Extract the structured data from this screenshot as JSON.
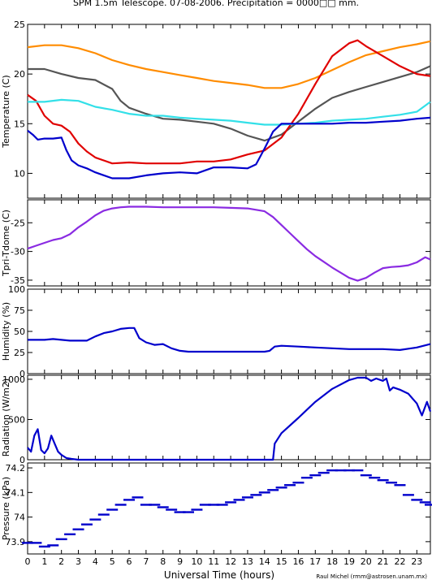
{
  "title": "SPM 1.5m Telescope. 07-08-2006. Precipitation = 0000□□ mm.",
  "xlabel": "Universal Time (hours)",
  "credit": "Raul Michel (rmm@astrosen.unam.mx)",
  "x_ticks": [
    "0",
    "1",
    "2",
    "3",
    "4",
    "5",
    "6",
    "7",
    "8",
    "9",
    "10",
    "11",
    "12",
    "13",
    "14",
    "15",
    "16",
    "17",
    "18",
    "19",
    "20",
    "21",
    "22",
    "23"
  ],
  "colors": {
    "orange": "#ff8c00",
    "dark_gray": "#555555",
    "red": "#e00000",
    "cyan": "#33e0e8",
    "blue": "#0000cc",
    "purple": "#8a2be2"
  },
  "chart_data": [
    {
      "type": "line",
      "ylabel": "Temperature (C)",
      "ylim": [
        7.5,
        25
      ],
      "yticks": [
        10,
        15,
        20,
        25
      ],
      "ytick_labels": [
        "10",
        "15",
        "20",
        "25"
      ],
      "xlim": [
        0,
        23.8
      ],
      "series": [
        {
          "color": "orange",
          "x": [
            0,
            1,
            2,
            3,
            4,
            5,
            6,
            7,
            8,
            9,
            10,
            11,
            12,
            13,
            14,
            15,
            16,
            17,
            18,
            19,
            20,
            21,
            22,
            23,
            23.8
          ],
          "y": [
            22.7,
            22.9,
            22.9,
            22.6,
            22.1,
            21.4,
            20.9,
            20.5,
            20.2,
            19.9,
            19.6,
            19.3,
            19.1,
            18.9,
            18.6,
            18.6,
            19.0,
            19.6,
            20.4,
            21.2,
            21.9,
            22.3,
            22.7,
            23.0,
            23.3
          ]
        },
        {
          "color": "dark_gray",
          "x": [
            0,
            1,
            2,
            3,
            4,
            5,
            5.5,
            6,
            7,
            8,
            9,
            10,
            11,
            12,
            13,
            14,
            15,
            16,
            17,
            18,
            19,
            20,
            21,
            22,
            23,
            23.8
          ],
          "y": [
            20.5,
            20.5,
            20.0,
            19.6,
            19.4,
            18.5,
            17.3,
            16.6,
            16.0,
            15.5,
            15.4,
            15.2,
            15.0,
            14.5,
            13.8,
            13.3,
            13.9,
            15.2,
            16.5,
            17.6,
            18.2,
            18.7,
            19.2,
            19.7,
            20.2,
            20.8
          ]
        },
        {
          "color": "red",
          "x": [
            0,
            0.5,
            1,
            1.5,
            2,
            2.5,
            3,
            3.5,
            4,
            5,
            6,
            7,
            8,
            9,
            10,
            11,
            12,
            13,
            14,
            15,
            16,
            17,
            18,
            19,
            19.5,
            20,
            21,
            22,
            23,
            23.8
          ],
          "y": [
            17.9,
            17.3,
            15.8,
            15.0,
            14.8,
            14.2,
            13.0,
            12.2,
            11.6,
            11.0,
            11.1,
            11.0,
            11.0,
            11.0,
            11.2,
            11.2,
            11.4,
            11.9,
            12.3,
            13.6,
            16.0,
            19.0,
            21.8,
            23.1,
            23.4,
            22.8,
            21.8,
            20.8,
            20.0,
            19.8
          ]
        },
        {
          "color": "cyan",
          "x": [
            0,
            1,
            2,
            3,
            4,
            5,
            6,
            7,
            8,
            9,
            10,
            11,
            12,
            13,
            14,
            15,
            16,
            17,
            18,
            19,
            20,
            21,
            22,
            23,
            23.8
          ],
          "y": [
            17.2,
            17.2,
            17.4,
            17.3,
            16.7,
            16.4,
            16.0,
            15.8,
            15.8,
            15.6,
            15.5,
            15.4,
            15.3,
            15.1,
            14.9,
            14.9,
            15.0,
            15.1,
            15.3,
            15.4,
            15.5,
            15.7,
            15.9,
            16.2,
            17.2
          ]
        },
        {
          "color": "blue",
          "x": [
            0,
            0.3,
            0.6,
            1,
            1.5,
            2,
            2.3,
            2.6,
            3,
            3.5,
            4,
            5,
            6,
            7,
            8,
            9,
            10,
            11,
            12,
            13,
            13.5,
            14,
            14.5,
            15,
            16,
            17,
            18,
            19,
            20,
            21,
            22,
            23,
            23.8
          ],
          "y": [
            14.3,
            13.9,
            13.4,
            13.5,
            13.5,
            13.6,
            12.3,
            11.3,
            10.8,
            10.5,
            10.1,
            9.5,
            9.5,
            9.8,
            10.0,
            10.1,
            10.0,
            10.6,
            10.6,
            10.5,
            10.9,
            12.5,
            14.2,
            15.0,
            15.0,
            15.0,
            15.0,
            15.1,
            15.1,
            15.2,
            15.3,
            15.5,
            15.6
          ]
        }
      ]
    },
    {
      "type": "line",
      "ylabel": "Tpri-Tdome (C)",
      "ylim": [
        -36,
        -21
      ],
      "yticks": [
        -35,
        -30,
        -25
      ],
      "ytick_labels": [
        "-35",
        "-30",
        "-25"
      ],
      "xlim": [
        0,
        23.8
      ],
      "series": [
        {
          "color": "purple",
          "x": [
            0,
            0.5,
            1,
            1.5,
            2,
            2.5,
            3,
            3.5,
            4,
            4.5,
            5,
            5.5,
            6,
            7,
            8,
            9,
            10,
            11,
            12,
            13,
            14,
            14.5,
            15,
            15.5,
            16,
            16.5,
            17,
            17.5,
            18,
            18.5,
            19,
            19.5,
            20,
            20.5,
            21,
            21.5,
            22,
            22.5,
            23,
            23.5,
            23.8
          ],
          "y": [
            -29.5,
            -29.0,
            -28.5,
            -28.0,
            -27.7,
            -27.0,
            -25.8,
            -24.8,
            -23.7,
            -22.9,
            -22.5,
            -22.3,
            -22.2,
            -22.2,
            -22.3,
            -22.3,
            -22.3,
            -22.3,
            -22.4,
            -22.5,
            -23.0,
            -24.0,
            -25.4,
            -26.8,
            -28.2,
            -29.6,
            -30.8,
            -31.8,
            -32.8,
            -33.7,
            -34.6,
            -35.1,
            -34.6,
            -33.7,
            -32.9,
            -32.7,
            -32.6,
            -32.4,
            -31.9,
            -31.0,
            -31.4
          ]
        }
      ]
    },
    {
      "type": "line",
      "ylabel": "Humidity (%)",
      "ylim": [
        0,
        100
      ],
      "yticks": [
        0,
        25,
        50,
        75,
        100
      ],
      "ytick_labels": [
        "0",
        "25",
        "50",
        "75",
        "100"
      ],
      "xlim": [
        0,
        23.8
      ],
      "series": [
        {
          "color": "blue",
          "x": [
            0,
            0.5,
            1,
            1.5,
            2,
            2.5,
            3,
            3.5,
            4,
            4.5,
            5,
            5.5,
            6,
            6.3,
            6.6,
            7,
            7.5,
            8,
            8.5,
            9,
            9.5,
            10,
            11,
            12,
            13,
            14,
            14.3,
            14.6,
            15,
            16,
            17,
            18,
            19,
            20,
            21,
            22,
            23,
            23.8
          ],
          "y": [
            40,
            40,
            40,
            41,
            40,
            39,
            39,
            39,
            44,
            48,
            50,
            53,
            54,
            54,
            42,
            37,
            34,
            35,
            30,
            27,
            26,
            26,
            26,
            26,
            26,
            26,
            27,
            32,
            33,
            32,
            31,
            30,
            29,
            29,
            29,
            28,
            31,
            35
          ]
        }
      ]
    },
    {
      "type": "line",
      "ylabel": "Radiation (W/m2)",
      "ylim": [
        0,
        1050
      ],
      "yticks": [
        0,
        500,
        1000
      ],
      "ytick_labels": [
        "0",
        "500",
        "1000"
      ],
      "xlim": [
        0,
        23.8
      ],
      "series": [
        {
          "color": "blue",
          "x": [
            0,
            0.2,
            0.4,
            0.6,
            0.8,
            1,
            1.2,
            1.4,
            1.6,
            1.8,
            2,
            2.3,
            2.6,
            3,
            4,
            5,
            6,
            7,
            8,
            9,
            10,
            11,
            12,
            13,
            14,
            14.5,
            14.6,
            15,
            16,
            17,
            18,
            19,
            19.5,
            20,
            20.3,
            20.6,
            21,
            21.2,
            21.4,
            21.6,
            22,
            22.5,
            23,
            23.3,
            23.6,
            23.8
          ],
          "y": [
            150,
            100,
            300,
            380,
            120,
            80,
            140,
            300,
            200,
            100,
            60,
            20,
            10,
            0,
            0,
            0,
            0,
            0,
            0,
            0,
            0,
            0,
            0,
            0,
            0,
            0,
            200,
            330,
            520,
            720,
            880,
            990,
            1020,
            1020,
            980,
            1010,
            980,
            1010,
            860,
            900,
            870,
            820,
            700,
            550,
            720,
            600
          ]
        }
      ]
    },
    {
      "type": "scatter",
      "ylabel": "Pressure (kPa)",
      "ylim": [
        73.85,
        74.22
      ],
      "yticks": [
        73.9,
        74,
        74.1,
        74.2
      ],
      "ytick_labels": [
        "73.9",
        "74",
        "74.1",
        "74.2"
      ],
      "xlim": [
        0,
        23.8
      ],
      "series": [
        {
          "color": "blue",
          "x": [
            0,
            0.5,
            1,
            1.5,
            2,
            2.5,
            3,
            3.5,
            4,
            4.5,
            5,
            5.5,
            6,
            6.5,
            7,
            7.5,
            8,
            8.5,
            9,
            9.5,
            10,
            10.5,
            11,
            11.5,
            12,
            12.5,
            13,
            13.5,
            14,
            14.5,
            15,
            15.5,
            16,
            16.5,
            17,
            17.5,
            18,
            18.5,
            19,
            19.5,
            20,
            20.5,
            21,
            21.5,
            22,
            22.5,
            23,
            23.5,
            23.8
          ],
          "y": [
            73.895,
            73.895,
            73.88,
            73.885,
            73.91,
            73.93,
            73.95,
            73.97,
            73.99,
            74.01,
            74.03,
            74.05,
            74.07,
            74.08,
            74.05,
            74.05,
            74.04,
            74.03,
            74.02,
            74.02,
            74.03,
            74.05,
            74.05,
            74.05,
            74.06,
            74.07,
            74.08,
            74.09,
            74.1,
            74.11,
            74.12,
            74.13,
            74.14,
            74.16,
            74.17,
            74.18,
            74.19,
            74.19,
            74.19,
            74.19,
            74.17,
            74.16,
            74.15,
            74.14,
            74.13,
            74.09,
            74.07,
            74.06,
            74.05
          ]
        }
      ]
    }
  ]
}
